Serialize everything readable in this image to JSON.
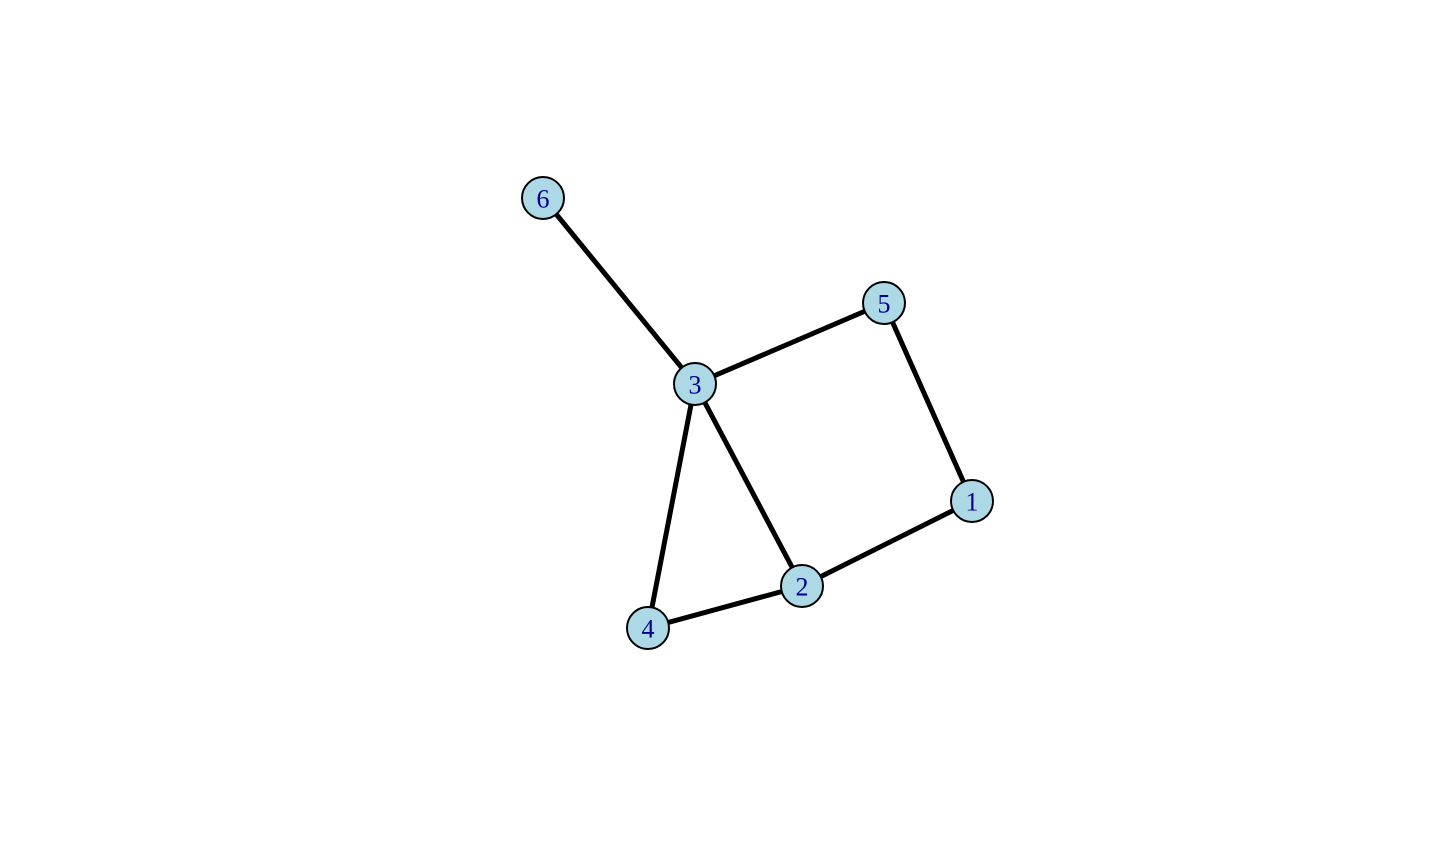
{
  "graph": {
    "colors": {
      "node_fill": "#add8e6",
      "node_stroke": "#000000",
      "label_color": "#00008b",
      "edge_color": "#000000"
    },
    "nodes": [
      {
        "id": "1",
        "label": "1"
      },
      {
        "id": "2",
        "label": "2"
      },
      {
        "id": "3",
        "label": "3"
      },
      {
        "id": "4",
        "label": "4"
      },
      {
        "id": "5",
        "label": "5"
      },
      {
        "id": "6",
        "label": "6"
      }
    ],
    "edges": [
      {
        "source": "6",
        "target": "3"
      },
      {
        "source": "3",
        "target": "5"
      },
      {
        "source": "5",
        "target": "1"
      },
      {
        "source": "1",
        "target": "2"
      },
      {
        "source": "3",
        "target": "2"
      },
      {
        "source": "3",
        "target": "4"
      },
      {
        "source": "4",
        "target": "2"
      }
    ]
  }
}
